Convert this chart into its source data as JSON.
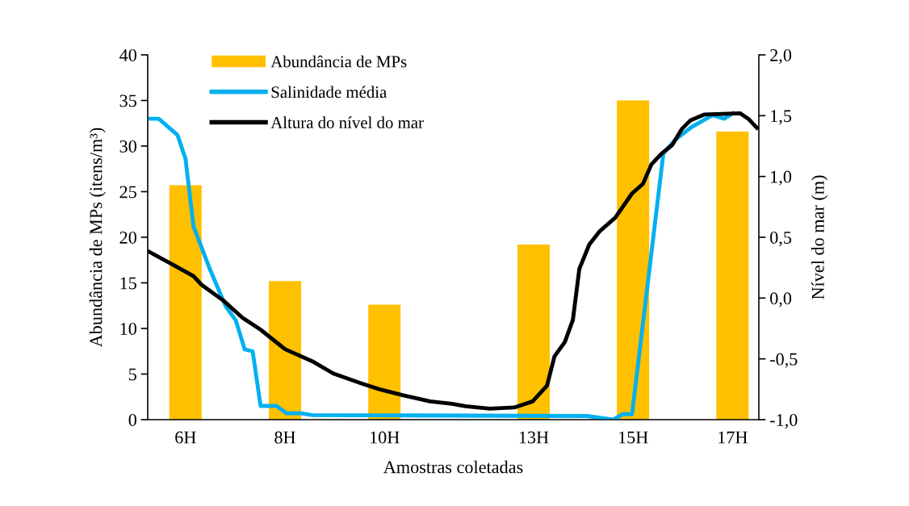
{
  "chart_data": {
    "type": "bar",
    "xlabel": "Amostras coletadas",
    "ylabel": "Abundância de MPs (itens/m³)",
    "y2label": "Nível do mar (m)",
    "x": [
      6,
      8,
      10,
      13,
      15,
      17
    ],
    "xlim": [
      5.24,
      17.53
    ],
    "xticks": [
      {
        "value": 6,
        "label": "6H"
      },
      {
        "value": 8,
        "label": "8H"
      },
      {
        "value": 10,
        "label": "10H"
      },
      {
        "value": 13,
        "label": "13H"
      },
      {
        "value": 15,
        "label": "15H"
      },
      {
        "value": 17,
        "label": "17H"
      }
    ],
    "ylim": [
      0,
      40
    ],
    "yticks": [
      0,
      5,
      10,
      15,
      20,
      25,
      30,
      35,
      40
    ],
    "y2lim": [
      -1.0,
      2.0
    ],
    "y2ticks": [
      {
        "value": -1.0,
        "label": "-1,0"
      },
      {
        "value": -0.5,
        "label": "-0,5"
      },
      {
        "value": 0.0,
        "label": "0,0"
      },
      {
        "value": 0.5,
        "label": "0,5"
      },
      {
        "value": 1.0,
        "label": "1,0"
      },
      {
        "value": 1.5,
        "label": "1,5"
      },
      {
        "value": 2.0,
        "label": "2,0"
      }
    ],
    "grid": false,
    "legend": "top left",
    "series": [
      {
        "name": "Abundância de MPs",
        "color": "#ffc000",
        "values": [
          25.7,
          15.2,
          12.6,
          19.2,
          35.0,
          31.6
        ]
      },
      {
        "name": "Salinidade média",
        "type": "line",
        "color": "#00b0f0",
        "x": [
          5.27,
          5.46,
          5.84,
          6.0,
          6.16,
          6.49,
          6.81,
          7.01,
          7.19,
          7.35,
          7.51,
          7.83,
          8.03,
          8.32,
          8.55,
          14.07,
          14.6,
          14.8,
          14.98,
          15.61,
          15.85,
          16.18,
          16.6,
          16.83,
          17.01
        ],
        "values": [
          33.0,
          33.0,
          31.2,
          28.6,
          21.2,
          16.5,
          12.4,
          10.9,
          7.7,
          7.5,
          1.5,
          1.5,
          0.7,
          0.7,
          0.5,
          0.4,
          0.0,
          0.6,
          0.6,
          29.2,
          30.7,
          32.1,
          33.4,
          33.0,
          33.6
        ]
      },
      {
        "name": "Altura do nível do mar",
        "type": "line",
        "axis": "y2",
        "color": "#000000",
        "x": [
          5.27,
          5.72,
          6.16,
          6.32,
          6.76,
          7.14,
          7.51,
          8.0,
          8.55,
          8.97,
          9.52,
          9.9,
          10.38,
          10.92,
          11.36,
          11.63,
          12.12,
          12.61,
          12.98,
          13.27,
          13.42,
          13.63,
          13.79,
          13.92,
          14.12,
          14.33,
          14.64,
          14.98,
          15.2,
          15.37,
          15.58,
          15.79,
          15.98,
          16.15,
          16.44,
          17.15,
          17.33,
          17.49
        ],
        "values": [
          0.38,
          0.28,
          0.18,
          0.11,
          -0.02,
          -0.16,
          -0.26,
          -0.42,
          -0.52,
          -0.62,
          -0.7,
          -0.75,
          -0.8,
          -0.85,
          -0.87,
          -0.89,
          -0.91,
          -0.9,
          -0.85,
          -0.72,
          -0.48,
          -0.36,
          -0.18,
          0.24,
          0.44,
          0.55,
          0.66,
          0.86,
          0.94,
          1.1,
          1.19,
          1.26,
          1.39,
          1.46,
          1.51,
          1.52,
          1.47,
          1.4
        ]
      }
    ]
  }
}
